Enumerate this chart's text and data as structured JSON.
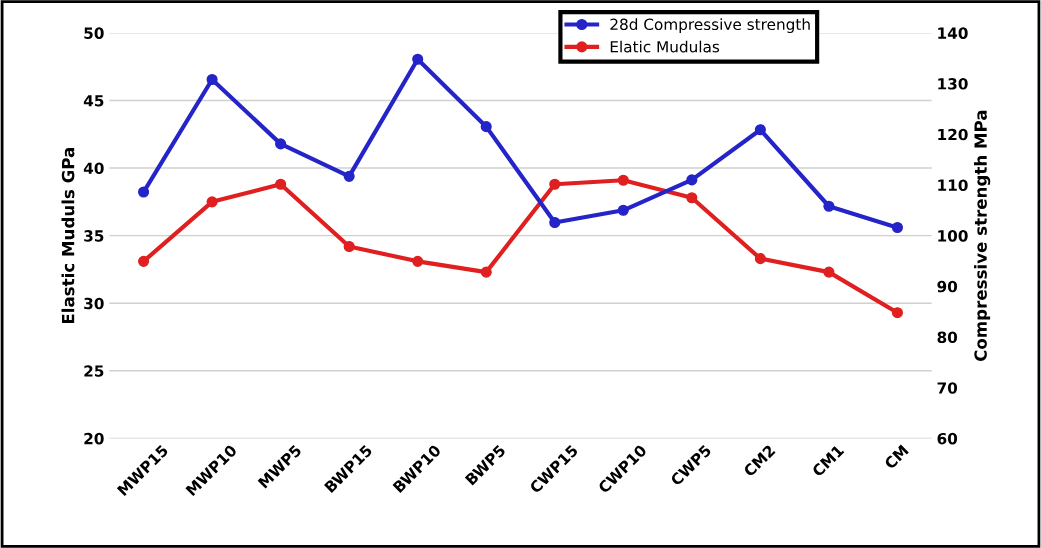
{
  "chart_data": {
    "type": "line",
    "categories": [
      "MWP15",
      "MWP10",
      "MWP5",
      "BWP15",
      "BWP10",
      "BWP5",
      "CWP15",
      "CWP10",
      "CWP5",
      "CM2",
      "CM1",
      "CM"
    ],
    "ylabel": "Elastic Muduls GPa",
    "y2label": "Compressive strength MPa",
    "series": [
      {
        "name": "28d Compressive strength",
        "color": "#2424c8",
        "axis": "y2",
        "values": [
          108.6,
          130.8,
          118.1,
          111.7,
          134.8,
          121.5,
          102.6,
          105.0,
          111.0,
          120.9,
          105.8,
          101.6
        ]
      },
      {
        "name": "Elatic Mudulas",
        "color": "#e02020",
        "values": [
          33.1,
          37.5,
          38.8,
          34.2,
          33.1,
          32.3,
          38.8,
          39.1,
          37.8,
          33.3,
          32.3,
          29.3
        ]
      }
    ],
    "ylim": [
      20,
      50
    ],
    "yticks": [
      20,
      25,
      30,
      35,
      40,
      45,
      50
    ],
    "y2lim": [
      60,
      140
    ],
    "y2ticks": [
      60,
      70,
      80,
      90,
      100,
      110,
      120,
      130,
      140
    ],
    "grid": "y",
    "legend": "top right",
    "marker": "circle",
    "line_style": "solid"
  }
}
